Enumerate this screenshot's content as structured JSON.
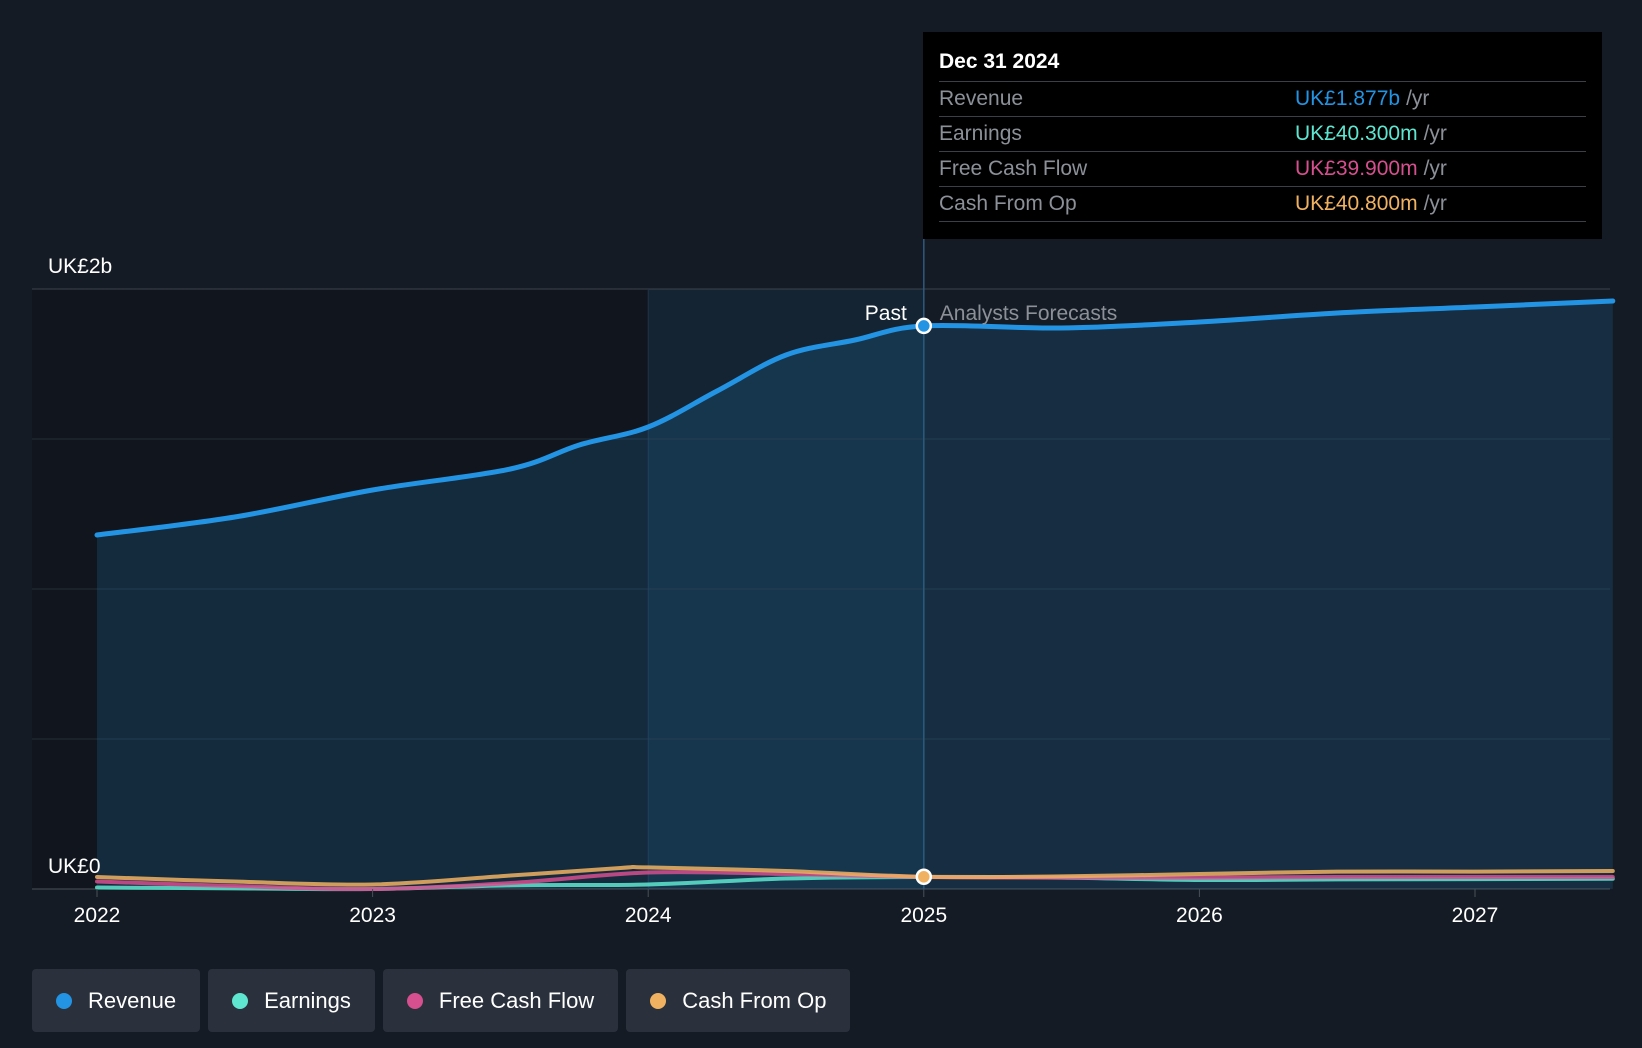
{
  "tooltip": {
    "date": "Dec 31 2024",
    "rows": [
      {
        "label": "Revenue",
        "value": "UK£1.877b",
        "unit": "/yr",
        "color": "#2394e3"
      },
      {
        "label": "Earnings",
        "value": "UK£40.300m",
        "unit": "/yr",
        "color": "#5ee6d0"
      },
      {
        "label": "Free Cash Flow",
        "value": "UK£39.900m",
        "unit": "/yr",
        "color": "#d64f8e"
      },
      {
        "label": "Cash From Op",
        "value": "UK£40.800m",
        "unit": "/yr",
        "color": "#f0b261"
      }
    ]
  },
  "labels": {
    "past": "Past",
    "forecast": "Analysts Forecasts"
  },
  "legend": [
    {
      "label": "Revenue",
      "color": "#2394e3"
    },
    {
      "label": "Earnings",
      "color": "#5ee6d0"
    },
    {
      "label": "Free Cash Flow",
      "color": "#d64f8e"
    },
    {
      "label": "Cash From Op",
      "color": "#f0b261"
    }
  ],
  "chart_data": {
    "type": "area",
    "y_tick_labels": [
      "UK£0",
      "UK£2b"
    ],
    "ylim": [
      0,
      2
    ],
    "y_unit": "UK£b",
    "x_tick_labels": [
      "2022",
      "2023",
      "2024",
      "2025",
      "2026",
      "2027"
    ],
    "xlim": [
      2021.77,
      2027.5
    ],
    "past_end": 2025.0,
    "highlight_start": 2024.0,
    "grid": true,
    "legend_position": "bottom",
    "series": [
      {
        "name": "Revenue",
        "color": "#2394e3",
        "fill": true,
        "points": [
          [
            2022.0,
            1.18
          ],
          [
            2022.5,
            1.24
          ],
          [
            2023.0,
            1.33
          ],
          [
            2023.5,
            1.4
          ],
          [
            2023.75,
            1.48
          ],
          [
            2024.0,
            1.54
          ],
          [
            2024.25,
            1.66
          ],
          [
            2024.5,
            1.78
          ],
          [
            2024.75,
            1.83
          ],
          [
            2025.0,
            1.877
          ],
          [
            2025.5,
            1.87
          ],
          [
            2026.0,
            1.89
          ],
          [
            2026.5,
            1.92
          ],
          [
            2027.0,
            1.94
          ],
          [
            2027.5,
            1.96
          ]
        ]
      },
      {
        "name": "Earnings",
        "color": "#5ee6d0",
        "points": [
          [
            2022.0,
            0.005
          ],
          [
            2022.5,
            0.002
          ],
          [
            2023.0,
            0.0
          ],
          [
            2023.5,
            0.012
          ],
          [
            2024.0,
            0.015
          ],
          [
            2024.5,
            0.035
          ],
          [
            2025.0,
            0.0403
          ],
          [
            2025.5,
            0.038
          ],
          [
            2026.0,
            0.03
          ],
          [
            2026.5,
            0.032
          ],
          [
            2027.0,
            0.033
          ],
          [
            2027.5,
            0.034
          ]
        ]
      },
      {
        "name": "Free Cash Flow",
        "color": "#d64f8e",
        "points": [
          [
            2022.0,
            0.025
          ],
          [
            2022.5,
            0.01
          ],
          [
            2023.0,
            0.0
          ],
          [
            2023.5,
            0.02
          ],
          [
            2024.0,
            0.055
          ],
          [
            2024.5,
            0.05
          ],
          [
            2025.0,
            0.0399
          ],
          [
            2025.5,
            0.038
          ],
          [
            2026.0,
            0.038
          ],
          [
            2026.5,
            0.04
          ],
          [
            2027.0,
            0.04
          ],
          [
            2027.5,
            0.04
          ]
        ]
      },
      {
        "name": "Cash From Op",
        "color": "#f0b261",
        "points": [
          [
            2022.0,
            0.04
          ],
          [
            2022.5,
            0.025
          ],
          [
            2023.0,
            0.015
          ],
          [
            2023.5,
            0.045
          ],
          [
            2023.9,
            0.07
          ],
          [
            2024.0,
            0.072
          ],
          [
            2024.5,
            0.06
          ],
          [
            2025.0,
            0.0408
          ],
          [
            2025.5,
            0.042
          ],
          [
            2026.0,
            0.05
          ],
          [
            2026.5,
            0.058
          ],
          [
            2027.0,
            0.058
          ],
          [
            2027.5,
            0.06
          ]
        ]
      }
    ]
  }
}
